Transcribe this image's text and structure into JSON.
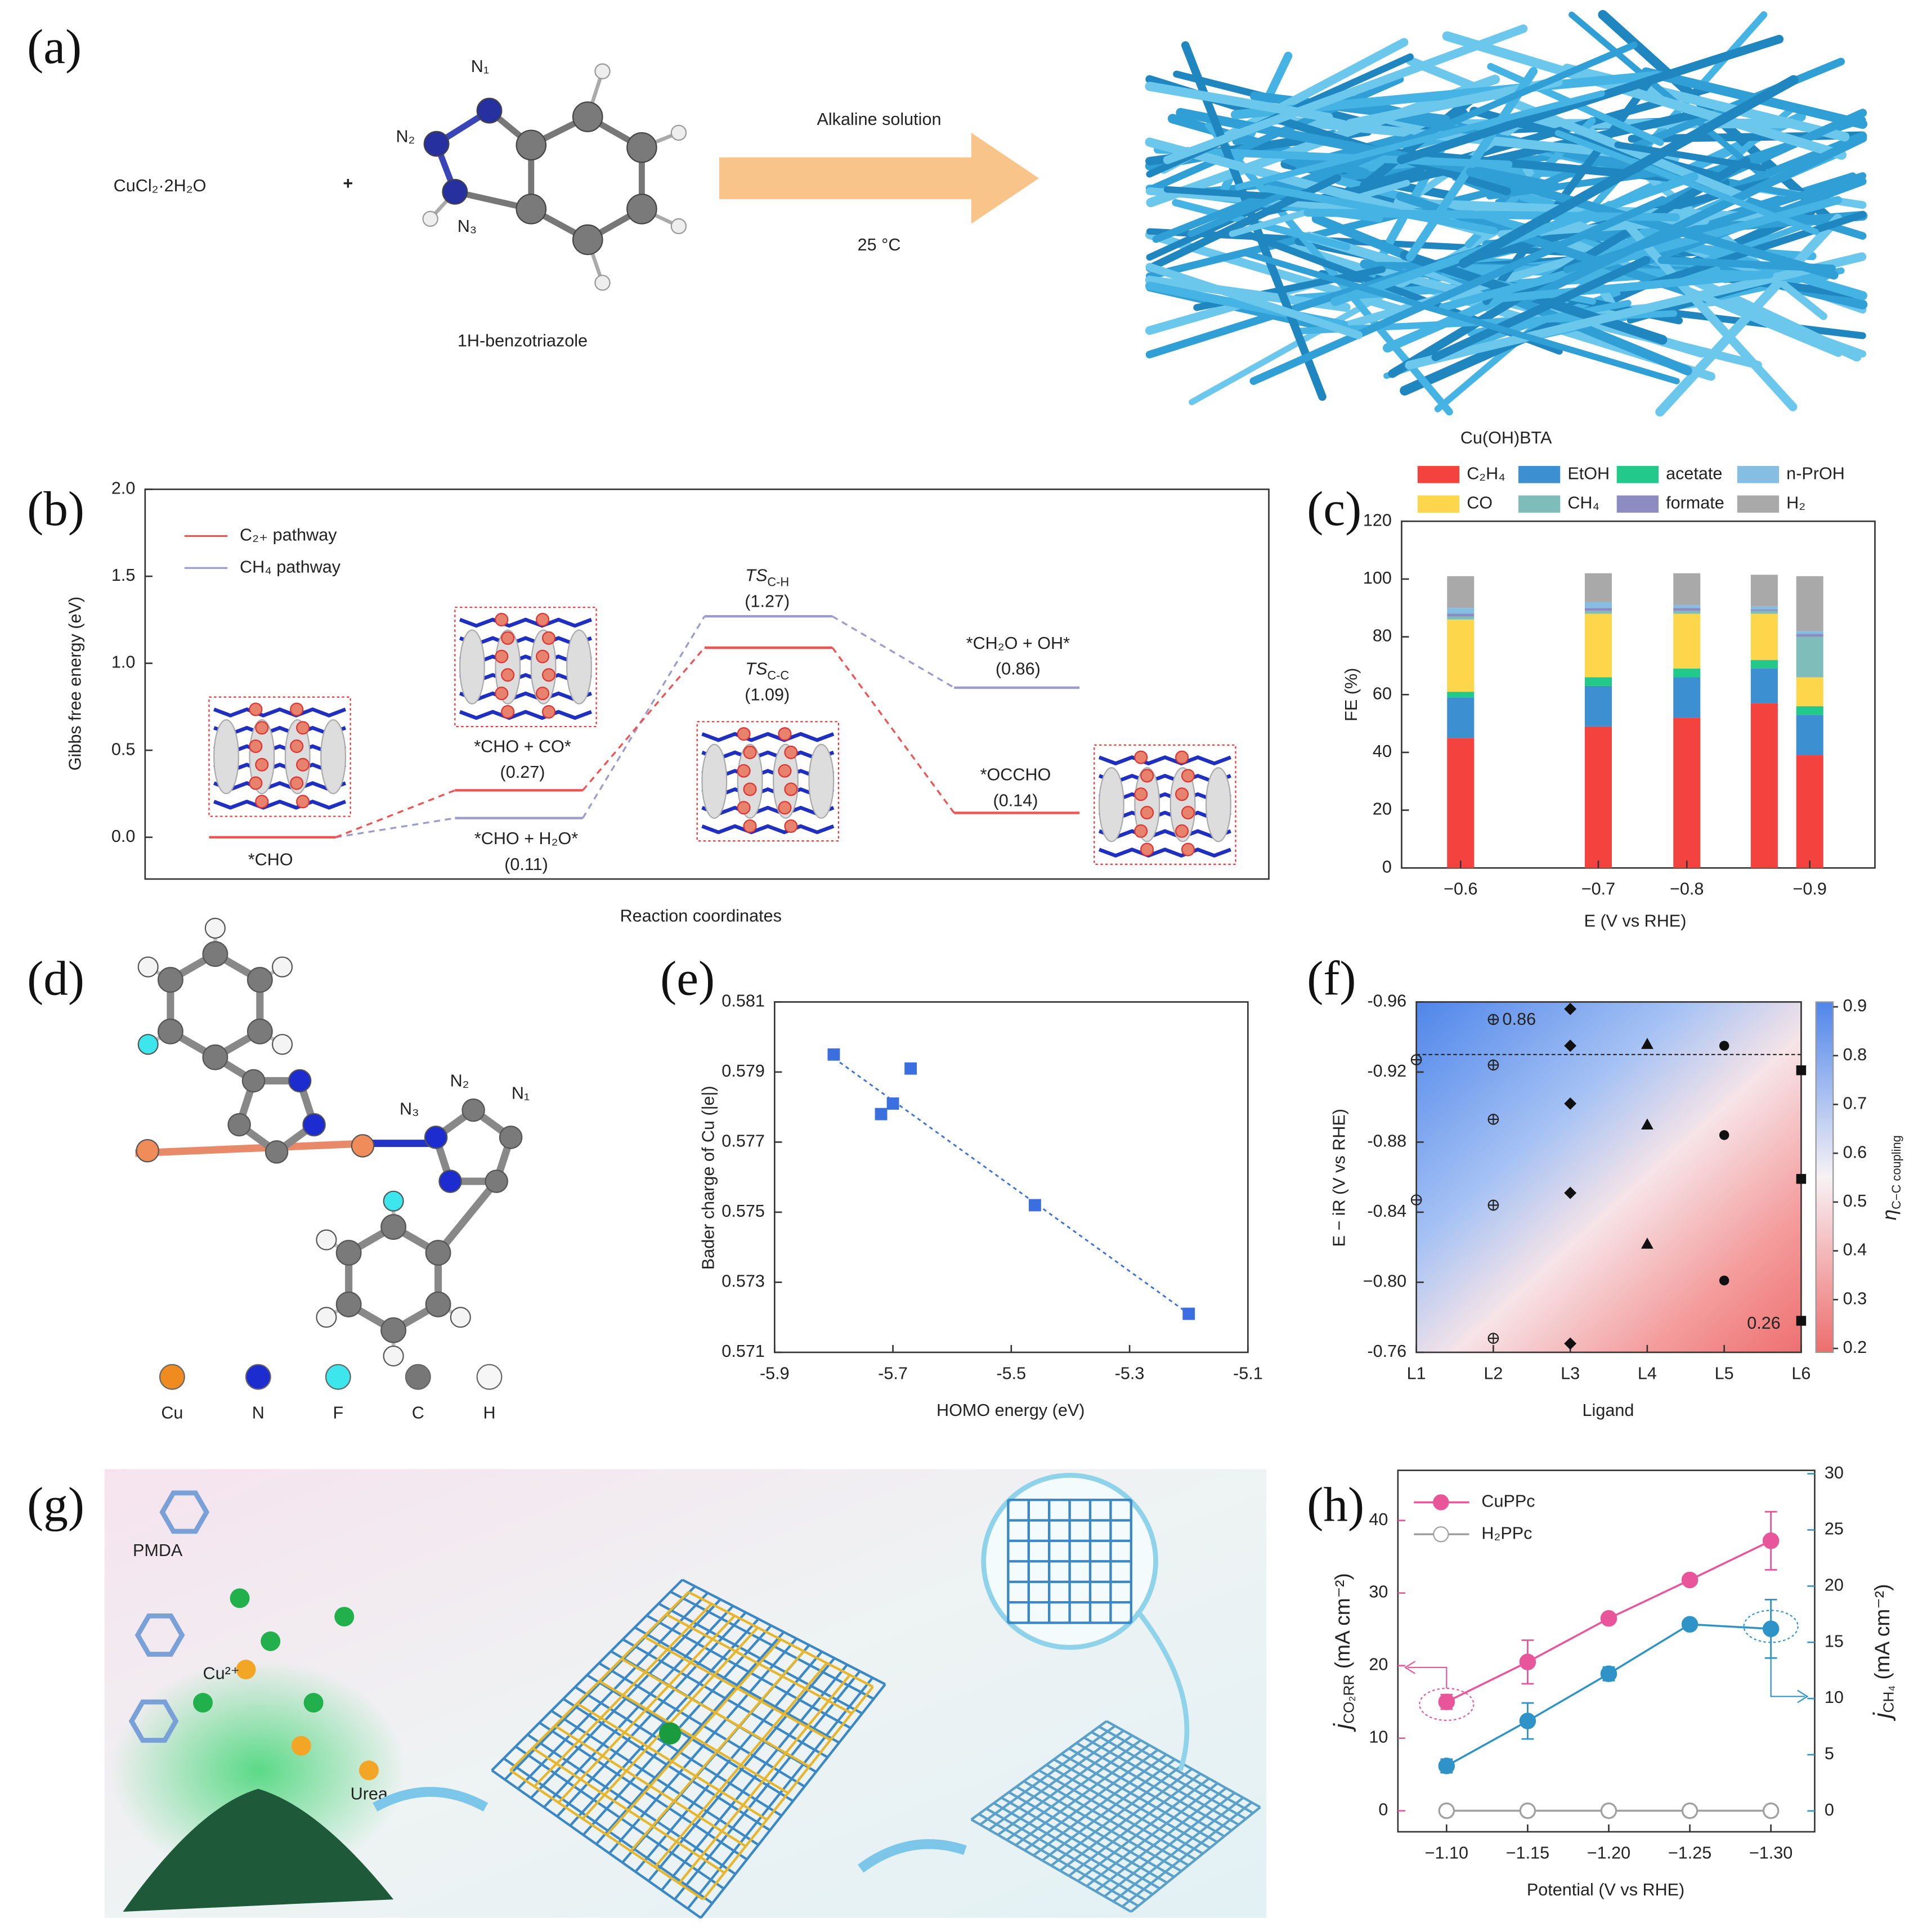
{
  "panel_labels": [
    "(a)",
    "(b)",
    "(c)",
    "(d)",
    "(e)",
    "(f)",
    "(g)",
    "(h)"
  ],
  "scheme": {
    "reactant": "CuCl₂·2H₂O",
    "plus": "+",
    "atoms": [
      "N₁",
      "N₂",
      "N₃"
    ],
    "ligand": "1H-benzotriazole",
    "condition": "Alkaline solution",
    "temperature": "25 °C",
    "product": "Cu(OH)BTA"
  },
  "structure": {
    "atoms": [
      "N₃",
      "N₂",
      "N₁"
    ],
    "legend": [
      "Cu",
      "N",
      "F",
      "C",
      "H"
    ]
  },
  "synthesis": {
    "labels": [
      "PMDA",
      "Cu²⁺",
      "Urea"
    ]
  },
  "chart_data": [
    {
      "type": "energy_profile",
      "xlabel": "Reaction coordinates",
      "ylabel": "Gibbs free energy (eV)",
      "ylim": [
        -0.24,
        2.0
      ],
      "yticks": [
        {
          "value": 0,
          "label": "0.0"
        },
        0.5,
        {
          "value": 1,
          "label": "1.0"
        },
        1.5,
        {
          "value": 2,
          "label": "2.0"
        }
      ],
      "series": [
        {
          "name": "C₂₊ pathway",
          "color": "#f05252",
          "values": [
            0,
            0.27,
            1.09,
            0.14
          ],
          "state_labels": [
            "*CHO",
            "*CHO + CO*",
            "TS",
            "*OCCHO"
          ],
          "state_subscripts": [
            null,
            null,
            "C-C",
            null
          ],
          "value_labels": [
            null,
            "(0.27)",
            "(1.09)",
            "(0.14)"
          ]
        },
        {
          "name": "CH₄ pathway",
          "color": "#9b9bd0",
          "values": [
            0,
            0.11,
            1.27,
            0.86
          ],
          "state_labels": [
            null,
            "*CHO + H₂O*",
            "TS",
            "*CH₂O + OH*"
          ],
          "state_subscripts": [
            null,
            null,
            "C-H",
            null
          ],
          "value_labels": [
            null,
            "(0.11)",
            "(1.27)",
            "(0.86)"
          ]
        }
      ]
    },
    {
      "type": "stacked_bar",
      "xlabel": "E (V vs RHE)",
      "ylabel": "FE (%)",
      "categories": [
        "−0.6",
        "−0.7",
        "−0.8",
        null,
        "−0.9"
      ],
      "ylim": [
        0,
        120
      ],
      "yticks": [
        0,
        20,
        40,
        60,
        80,
        100,
        120
      ],
      "series": [
        {
          "name": "C₂H₄",
          "color": "#f4433f",
          "values": [
            45,
            49,
            52,
            57,
            39
          ]
        },
        {
          "name": "EtOH",
          "color": "#3c8fd0",
          "values": [
            14,
            14,
            14,
            12,
            14
          ]
        },
        {
          "name": "acetate",
          "color": "#22c98a",
          "values": [
            2,
            3,
            3,
            3,
            3
          ]
        },
        {
          "name": "CO",
          "color": "#fdd64b",
          "values": [
            25,
            22,
            19,
            16,
            10
          ]
        },
        {
          "name": "CH₄",
          "color": "#7fbdbb",
          "values": [
            1,
            1,
            1,
            1,
            14
          ]
        },
        {
          "name": "formate",
          "color": "#8c8cc2",
          "values": [
            1,
            1,
            1,
            0.5,
            1
          ]
        },
        {
          "name": "n-PrOH",
          "color": "#86bde3",
          "values": [
            2,
            2,
            1,
            1,
            1
          ]
        },
        {
          "name": "H₂",
          "color": "#a9a9a9",
          "values": [
            11,
            10,
            11,
            11,
            19
          ]
        }
      ]
    },
    {
      "type": "scatter",
      "xlabel": "HOMO energy (eV)",
      "ylabel": "Bader charge of Cu (|e|)",
      "color": "#3b6fe0",
      "x": [
        -5.8,
        -5.72,
        -5.7,
        -5.67,
        -5.46,
        -5.2
      ],
      "values": [
        0.5795,
        0.5778,
        0.5781,
        0.5791,
        0.5752,
        0.5721
      ],
      "fit": {
        "x": [
          -5.8,
          -5.2
        ],
        "values": [
          0.5794,
          0.5721
        ]
      },
      "xlim": [
        -5.9,
        -5.1
      ],
      "ylim": [
        0.571,
        0.581
      ],
      "xticks": [
        -5.9,
        -5.7,
        -5.5,
        -5.3,
        -5.1
      ],
      "yticks": [
        0.571,
        0.573,
        0.575,
        0.577,
        0.579,
        0.581
      ]
    },
    {
      "type": "contour_scatter",
      "xlabel": "Ligand",
      "ylabel": "E − iR (V vs RHE)",
      "categories": [
        "L1",
        "L2",
        "L3",
        "L4",
        "L5",
        "L6"
      ],
      "ylim": [
        -0.76,
        -0.96
      ],
      "yticks": [
        -0.96,
        -0.92,
        -0.88,
        -0.84,
        {
          "value": -0.8,
          "label": "−0.80"
        },
        -0.76
      ],
      "hline": -0.93,
      "annotations": [
        "0.86",
        "0.26"
      ],
      "clabel": {
        "symbol": "η",
        "sub": "C−C coupling"
      },
      "clim": [
        0.192,
        0.91
      ],
      "cticks": [
        0.2,
        0.3,
        0.4,
        0.5,
        0.6,
        0.7,
        0.8,
        0.9
      ],
      "series": [
        {
          "marker": "crossed-circle",
          "x": [
            "L1",
            "L1",
            "L2",
            "L2",
            "L2",
            "L2",
            "L2"
          ],
          "values": [
            -0.927,
            -0.847,
            -0.95,
            -0.924,
            -0.893,
            -0.844,
            -0.768
          ]
        },
        {
          "marker": "diamond",
          "x": [
            "L3",
            "L3",
            "L3",
            "L3",
            "L3"
          ],
          "values": [
            -0.956,
            -0.935,
            -0.902,
            -0.851,
            -0.765
          ]
        },
        {
          "marker": "triangle",
          "x": [
            "L4",
            "L4",
            "L4"
          ],
          "values": [
            -0.936,
            -0.89,
            -0.822
          ]
        },
        {
          "marker": "circle",
          "x": [
            "L5",
            "L5",
            "L5"
          ],
          "values": [
            -0.935,
            -0.884,
            -0.801
          ]
        },
        {
          "marker": "square",
          "x": [
            "L6",
            "L6",
            "L6"
          ],
          "values": [
            -0.921,
            -0.859,
            -0.778
          ]
        }
      ]
    },
    {
      "type": "dual_axis_line",
      "xlabel": "Potential (V vs RHE)",
      "ylabel": {
        "symbol": "j",
        "sub": "CO₂RR",
        "unit": " (mA cm⁻²)"
      },
      "y2label": {
        "symbol": "j",
        "sub": "CH₄",
        "unit": " (mA cm⁻²)"
      },
      "x": [
        -1.1,
        -1.15,
        -1.2,
        -1.25,
        -1.3
      ],
      "xlim": [
        -1.07,
        -1.327
      ],
      "xticks": [
        {
          "value": -1.1,
          "label": "−1.10"
        },
        {
          "value": -1.15,
          "label": "−1.15"
        },
        {
          "value": -1.2,
          "label": "−1.20"
        },
        {
          "value": -1.25,
          "label": "−1.25"
        },
        {
          "value": -1.3,
          "label": "−1.30"
        }
      ],
      "ylim": [
        -2.9,
        46.9
      ],
      "yticks": [
        0,
        10,
        20,
        30,
        40
      ],
      "y2lim": [
        -1.86,
        30.3
      ],
      "y2ticks": [
        0,
        5,
        10,
        15,
        20,
        25,
        30
      ],
      "series": [
        {
          "name": "CuPPc",
          "color": "#e8559a",
          "values": [
            15,
            20.5,
            26.5,
            31.8,
            37.2
          ],
          "errors": [
            1,
            3,
            0.5,
            0.5,
            4
          ]
        },
        {
          "name": "H₂PPc",
          "color": "#a0a0a0",
          "values": [
            0,
            0,
            0,
            0,
            0
          ]
        },
        {
          "color": "#2f93c8",
          "axis": "y2",
          "values": [
            4,
            8,
            12.2,
            16.6,
            16.2
          ],
          "errors": [
            0.6,
            1.6,
            0.6,
            0.4,
            2.6
          ]
        }
      ]
    }
  ]
}
